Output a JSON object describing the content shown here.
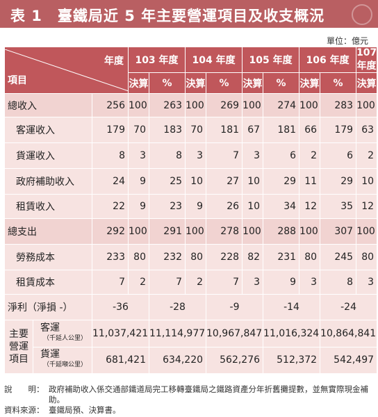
{
  "title": "表 1　臺鐵局近 5 年主要營運項目及收支概況",
  "unit": "單位：億元",
  "header": {
    "year_label": "年度",
    "item_label": "項目",
    "years": [
      "103 年度",
      "104 年度",
      "105 年度",
      "106 年度",
      "107 年度"
    ],
    "settle": "決算",
    "pct": "%"
  },
  "rows": [
    {
      "name": "總收入",
      "v": [
        "256",
        "263",
        "269",
        "274",
        "283"
      ],
      "p": [
        "100",
        "100",
        "100",
        "100",
        "100"
      ]
    },
    {
      "name": "客運收入",
      "v": [
        "179",
        "183",
        "181",
        "181",
        "179"
      ],
      "p": [
        "70",
        "70",
        "67",
        "66",
        "63"
      ]
    },
    {
      "name": "貨運收入",
      "v": [
        "8",
        "8",
        "7",
        "6",
        "6"
      ],
      "p": [
        "3",
        "3",
        "3",
        "2",
        "2"
      ]
    },
    {
      "name": "政府補助收入",
      "v": [
        "24",
        "25",
        "27",
        "29",
        "29"
      ],
      "p": [
        "9",
        "10",
        "10",
        "11",
        "10"
      ]
    },
    {
      "name": "租賃收入",
      "v": [
        "22",
        "23",
        "26",
        "34",
        "35"
      ],
      "p": [
        "9",
        "9",
        "10",
        "12",
        "12"
      ]
    },
    {
      "name": "總支出",
      "v": [
        "292",
        "291",
        "278",
        "288",
        "307"
      ],
      "p": [
        "100",
        "100",
        "100",
        "100",
        "100"
      ]
    },
    {
      "name": "勞務成本",
      "v": [
        "233",
        "232",
        "228",
        "231",
        "245"
      ],
      "p": [
        "80",
        "80",
        "82",
        "80",
        "80"
      ]
    },
    {
      "name": "租賃成本",
      "v": [
        "7",
        "7",
        "7",
        "9",
        "8"
      ],
      "p": [
        "2",
        "2",
        "3",
        "3",
        "3"
      ]
    }
  ],
  "net": {
    "name": "淨利（淨損 -）",
    "v": [
      "-36",
      "-28",
      "-9",
      "-14",
      "-24"
    ]
  },
  "group": {
    "label_lines": [
      "主要",
      "營運",
      "項目"
    ],
    "passenger": {
      "name": "客運",
      "unit": "（千延人公里）",
      "v": [
        "11,037,421",
        "11,114,977",
        "10,967,847",
        "11,016,324",
        "10,864,841"
      ]
    },
    "freight": {
      "name": "貨運",
      "unit": "（千延噸公里）",
      "v": [
        "681,421",
        "634,220",
        "562,276",
        "512,372",
        "542,497"
      ]
    }
  },
  "notes": {
    "note_label": "說　　明：",
    "note_text": "政府補助收入係交通部鐵道局完工移轉臺鐵局之鐵路資產分年折舊攤提數，並無實際現金補助。",
    "source_label": "資料來源：",
    "source_text": "臺鐵局預、決算書。"
  }
}
